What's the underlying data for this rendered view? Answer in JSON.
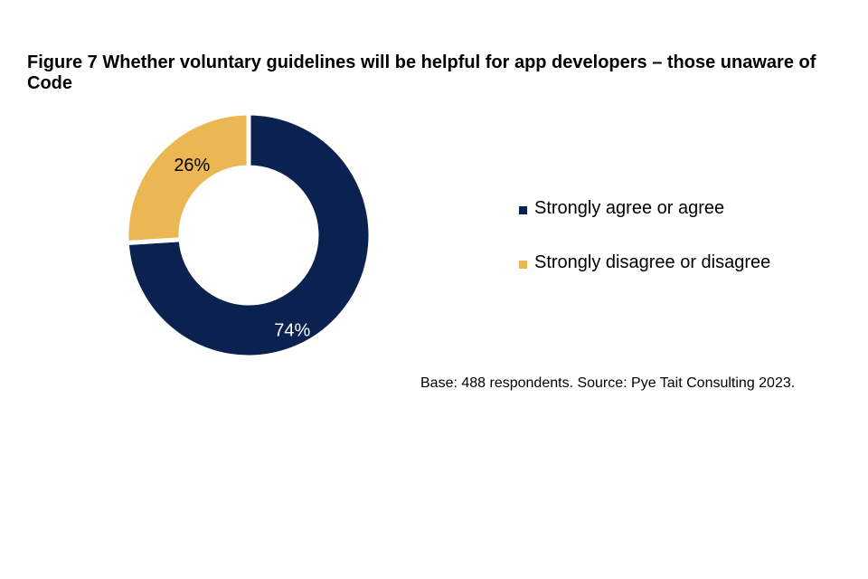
{
  "chart_data": {
    "type": "pie",
    "title": "Figure 7 Whether voluntary guidelines will be helpful for app developers – those unaware of Code",
    "slices": [
      {
        "label": "Strongly agree or agree",
        "value": 74,
        "display": "74%",
        "color": "#0b2150",
        "label_color": "#ffffff"
      },
      {
        "label": "Strongly disagree or disagree",
        "value": 26,
        "display": "26%",
        "color": "#eab753",
        "label_color": "#000000"
      }
    ],
    "legend_position": "right",
    "donut": true
  },
  "source_note": "Base: 488 respondents. Source: Pye Tait Consulting 2023."
}
